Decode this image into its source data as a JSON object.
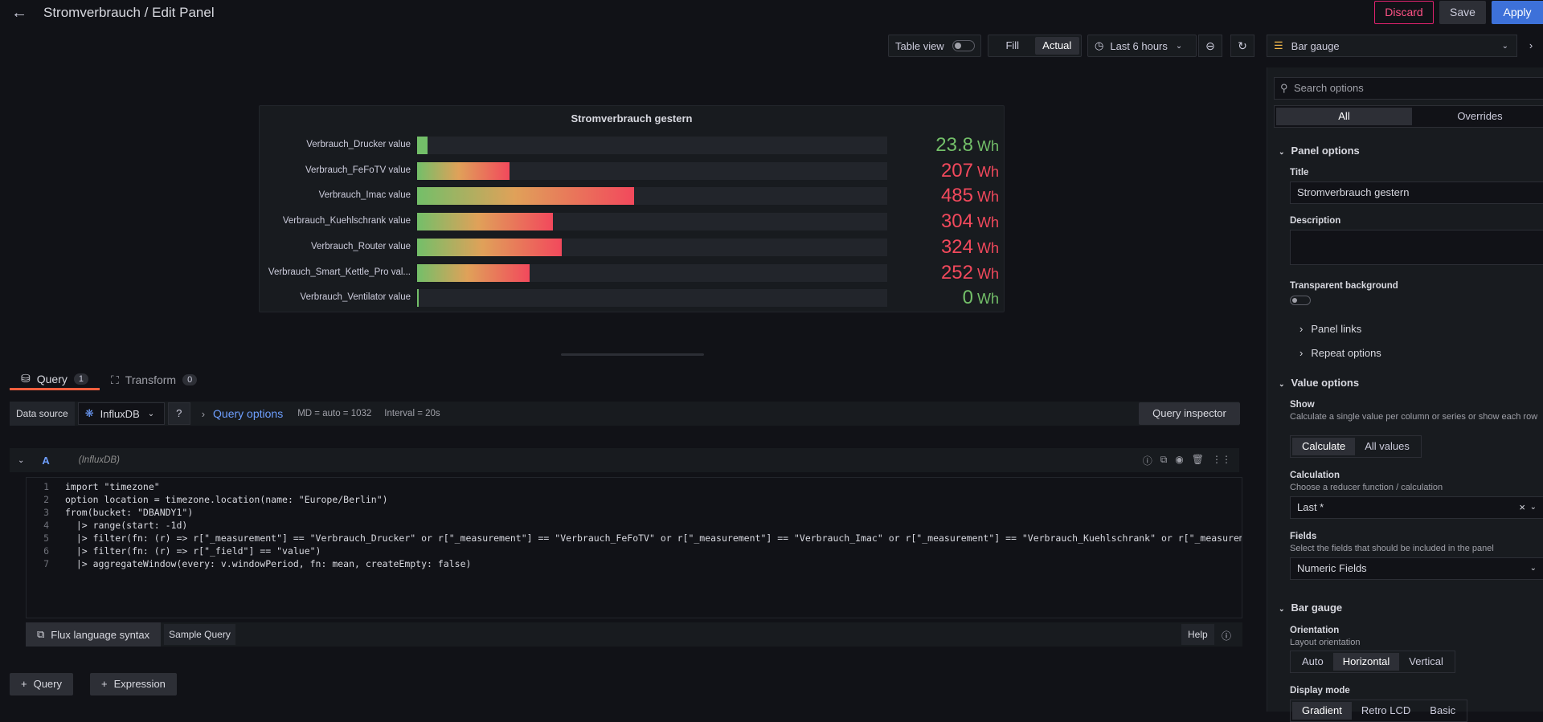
{
  "header": {
    "title": "Stromverbrauch / Edit Panel",
    "discard": "Discard",
    "save": "Save",
    "apply": "Apply"
  },
  "toolbar": {
    "table_view": "Table view",
    "fill": "Fill",
    "actual": "Actual",
    "time_range": "Last 6 hours",
    "visualization": "Bar gauge"
  },
  "panel": {
    "title": "Stromverbrauch gestern"
  },
  "chart_data": {
    "type": "bar",
    "title": "Stromverbrauch gestern",
    "orientation": "horizontal",
    "unit": "Wh",
    "categories": [
      "Verbrauch_Drucker value",
      "Verbrauch_FeFoTV value",
      "Verbrauch_Imac value",
      "Verbrauch_Kuehlschrank value",
      "Verbrauch_Router value",
      "Verbrauch_Smart_Kettle_Pro val...",
      "Verbrauch_Ventilator value"
    ],
    "values": [
      23.8,
      207,
      485,
      304,
      324,
      252,
      0
    ],
    "display_values": [
      "23.8",
      "207",
      "485",
      "304",
      "324",
      "252",
      "0"
    ],
    "value_colors": [
      "#73bf69",
      "#f2495c",
      "#f2495c",
      "#f2495c",
      "#f2495c",
      "#f2495c",
      "#73bf69"
    ],
    "xlim": [
      0,
      1000
    ]
  },
  "tabs": {
    "query": "Query",
    "query_count": "1",
    "transform": "Transform",
    "transform_count": "0"
  },
  "query_row": {
    "ds_label": "Data source",
    "ds_name": "InfluxDB",
    "options": "Query options",
    "md": "MD = auto = 1032",
    "interval": "Interval = 20s",
    "inspector": "Query inspector"
  },
  "query_head": {
    "ref": "A",
    "ds": "(InfluxDB)"
  },
  "code": [
    "import \"timezone\"",
    "option location = timezone.location(name: \"Europe/Berlin\")",
    "from(bucket: \"DBANDY1\")",
    "  |> range(start: -1d)",
    "  |> filter(fn: (r) => r[\"_measurement\"] == \"Verbrauch_Drucker\" or r[\"_measurement\"] == \"Verbrauch_FeFoTV\" or r[\"_measurement\"] == \"Verbrauch_Imac\" or r[\"_measurement\"] == \"Verbrauch_Kuehlschrank\" or r[\"_measurement\"] == \"V",
    "  |> filter(fn: (r) => r[\"_field\"] == \"value\")",
    "  |> aggregateWindow(every: v.windowPeriod, fn: mean, createEmpty: false)"
  ],
  "editor_bottom": {
    "flux": "Flux language syntax",
    "sample": "Sample Query",
    "help": "Help"
  },
  "add": {
    "query": "Query",
    "expression": "Expression"
  },
  "options": {
    "search": "Search options",
    "all": "All",
    "overrides": "Overrides",
    "panel_options": "Panel options",
    "title_label": "Title",
    "title_value": "Stromverbrauch gestern",
    "description_label": "Description",
    "transparent": "Transparent background",
    "panel_links": "Panel links",
    "repeat_options": "Repeat options",
    "value_options": "Value options",
    "show_label": "Show",
    "show_desc": "Calculate a single value per column or series or show each row",
    "calculate": "Calculate",
    "all_values": "All values",
    "calc_label": "Calculation",
    "calc_desc": "Choose a reducer function / calculation",
    "calc_value": "Last *",
    "fields_label": "Fields",
    "fields_desc": "Select the fields that should be included in the panel",
    "fields_value": "Numeric Fields",
    "bar_gauge": "Bar gauge",
    "orientation_label": "Orientation",
    "orientation_desc": "Layout orientation",
    "auto": "Auto",
    "horizontal": "Horizontal",
    "vertical": "Vertical",
    "display_mode": "Display mode",
    "gradient": "Gradient",
    "retro": "Retro LCD",
    "basic": "Basic"
  }
}
